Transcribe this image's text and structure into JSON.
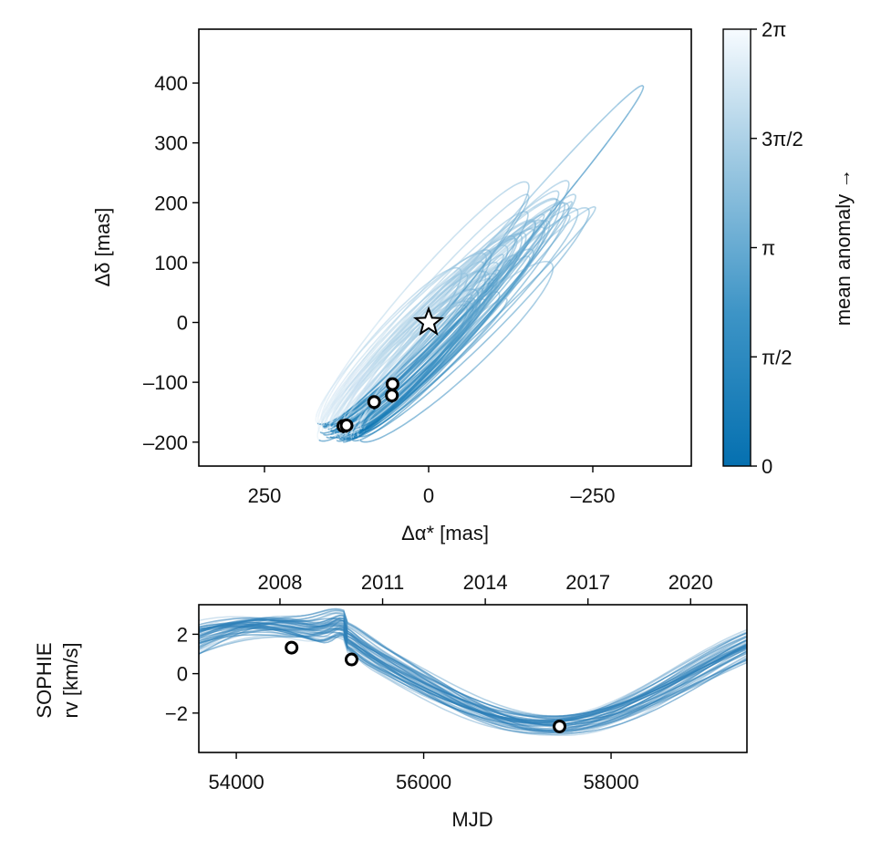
{
  "chart_data": [
    {
      "type": "line",
      "title": "",
      "panel": "astrometry",
      "xlabel": "Δα* [mas]",
      "ylabel": "Δδ [mas]",
      "xlim": [
        350,
        -400
      ],
      "ylim": [
        -240,
        490
      ],
      "x_ticks": [
        250,
        0,
        -250
      ],
      "x_tick_labels": [
        "250",
        "0",
        "–250"
      ],
      "y_ticks": [
        400,
        300,
        200,
        100,
        0,
        -100,
        -200
      ],
      "y_tick_labels": [
        "400",
        "300",
        "200",
        "100",
        "0",
        "–100",
        "–200"
      ],
      "star_marker": {
        "x": 0,
        "y": 0
      },
      "observations": [
        {
          "x": 130,
          "y": -173
        },
        {
          "x": 125,
          "y": -172
        },
        {
          "x": 83,
          "y": -133
        },
        {
          "x": 55,
          "y": -103
        },
        {
          "x": 56,
          "y": -122
        }
      ],
      "orbit_series_count": 60,
      "colorbar": {
        "label": "mean anomaly →",
        "range": [
          0,
          6.2832
        ],
        "ticks": [
          0,
          1.5708,
          3.1416,
          4.7124,
          6.2832
        ],
        "tick_labels": [
          "0",
          "π/2",
          "π",
          "3π/2",
          "2π"
        ],
        "color_low": "#0570b0",
        "color_high": "#f7fbff"
      }
    },
    {
      "type": "line",
      "title": "",
      "panel": "radial-velocity",
      "xlabel": "MJD",
      "ylabel_lines": [
        "SOPHIE",
        "rv [km/s]"
      ],
      "xlim": [
        53600,
        59450
      ],
      "ylim": [
        -4,
        3.5
      ],
      "x_ticks": [
        54000,
        56000,
        58000
      ],
      "x_tick_labels": [
        "54000",
        "56000",
        "58000"
      ],
      "y_ticks": [
        2,
        0,
        -2
      ],
      "y_tick_labels": [
        "2",
        "0",
        "−2"
      ],
      "top_axis_ticks": [
        2008,
        2011,
        2014,
        2017,
        2020
      ],
      "top_axis_labels": [
        "2008",
        "2011",
        "2014",
        "2017",
        "2020"
      ],
      "observations": [
        {
          "x": 54590,
          "y": 1.32
        },
        {
          "x": 55230,
          "y": 0.72
        },
        {
          "x": 57450,
          "y": -2.68
        }
      ],
      "model_series_count": 50,
      "series_color": "#2c7fb8"
    }
  ]
}
